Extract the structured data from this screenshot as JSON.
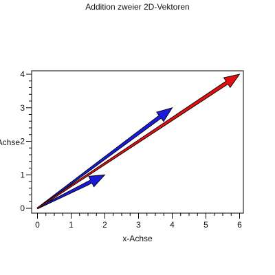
{
  "chart_data": {
    "type": "vector",
    "title": "Addition zweier 2D-Vektoren",
    "xlabel": "x-Achse",
    "ylabel": "y-Achse",
    "xlim": [
      0,
      6
    ],
    "ylim": [
      0,
      4
    ],
    "xticks": [
      "0",
      "1",
      "2",
      "3",
      "4",
      "5",
      "6"
    ],
    "yticks": [
      "0",
      "1",
      "2",
      "3",
      "4"
    ],
    "grid": false,
    "series": [
      {
        "from": [
          0,
          0
        ],
        "to": [
          2,
          1
        ],
        "color": "#1a1adc"
      },
      {
        "from": [
          0,
          0
        ],
        "to": [
          4,
          3
        ],
        "color": "#1a1adc"
      },
      {
        "from": [
          0,
          0
        ],
        "to": [
          6,
          4
        ],
        "color": "#e01010"
      }
    ]
  }
}
